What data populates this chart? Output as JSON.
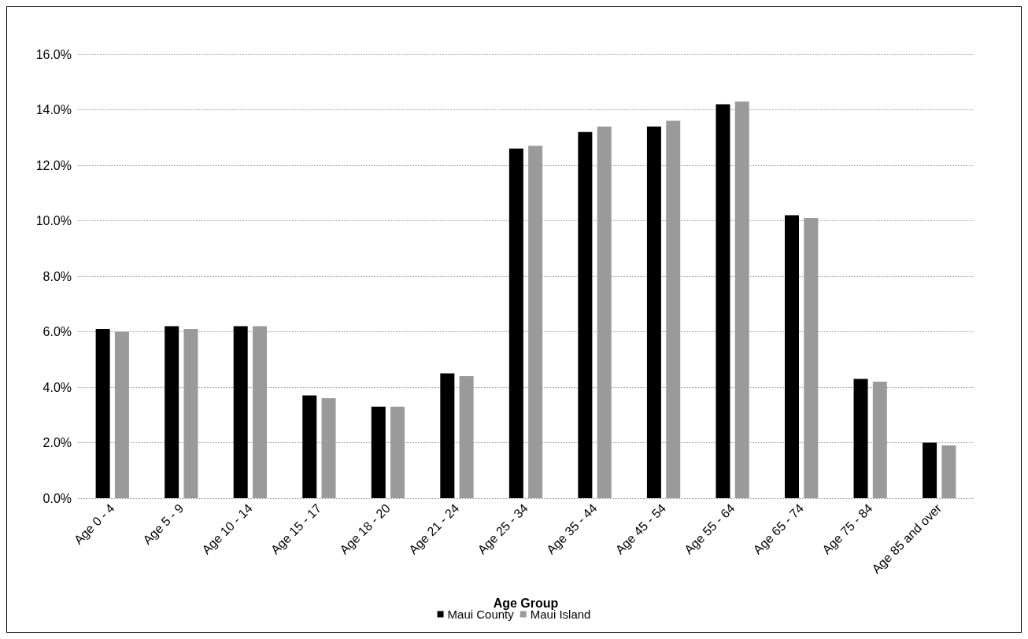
{
  "chart_data": {
    "type": "bar",
    "xlabel": "Age Group",
    "categories": [
      "Age 0 - 4",
      "Age 5 - 9",
      "Age 10 - 14",
      "Age 15 - 17",
      "Age 18 - 20",
      "Age 21 - 24",
      "Age 25 - 34",
      "Age 35 - 44",
      "Age 45 - 54",
      "Age 55 - 64",
      "Age 65 - 74",
      "Age 75 - 84",
      "Age 85 and over"
    ],
    "series": [
      {
        "name": "Maui County",
        "color": "#000000",
        "values": [
          6.1,
          6.2,
          6.2,
          3.7,
          3.3,
          4.5,
          12.6,
          13.2,
          13.4,
          14.2,
          10.2,
          4.3,
          2.0
        ]
      },
      {
        "name": "Maui Island",
        "color": "#9a9a9a",
        "values": [
          6.0,
          6.1,
          6.2,
          3.6,
          3.3,
          4.4,
          12.7,
          13.4,
          13.6,
          14.3,
          10.1,
          4.2,
          1.9
        ]
      }
    ],
    "ylim": [
      0,
      16
    ],
    "yticks": [
      {
        "value": 0,
        "label": "0.0%"
      },
      {
        "value": 2,
        "label": "2.0%"
      },
      {
        "value": 4,
        "label": "4.0%"
      },
      {
        "value": 6,
        "label": "6.0%"
      },
      {
        "value": 8,
        "label": "8.0%"
      },
      {
        "value": 10,
        "label": "10.0%"
      },
      {
        "value": 12,
        "label": "12.0%"
      },
      {
        "value": 14,
        "label": "14.0%"
      },
      {
        "value": 16,
        "label": "16.0%"
      }
    ],
    "grid": "y",
    "legend": "bottom"
  }
}
